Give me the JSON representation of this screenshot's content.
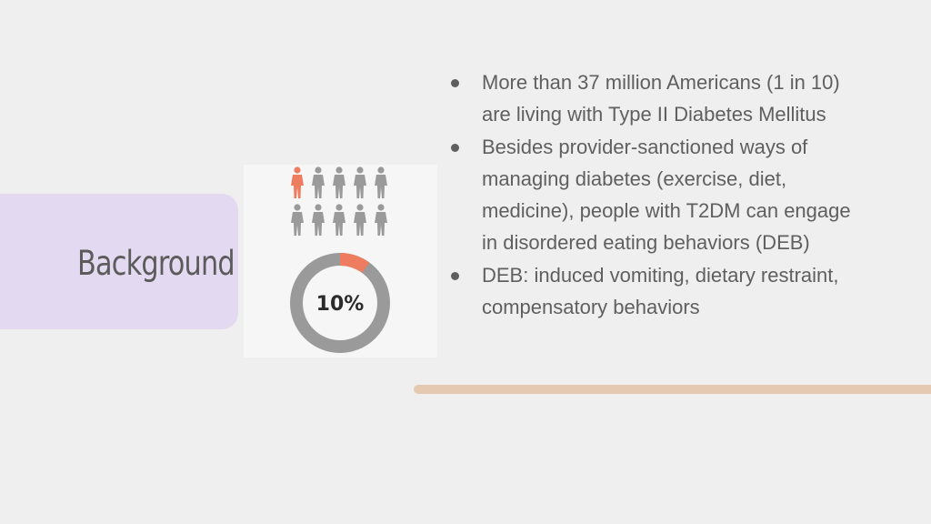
{
  "slide": {
    "title": "Background",
    "bullets": [
      "More than 37 million Americans (1 in 10) are living with Type II Diabetes Mellitus",
      "Besides provider-sanctioned ways of managing diabetes (exercise, diet, medicine), people with T2DM can engage in disordered eating behaviors (DEB)",
      "DEB: induced vomiting, dietary restraint, compensatory behaviors"
    ]
  },
  "infographic": {
    "percent_label": "10%",
    "highlighted_people": 1,
    "total_people": 10,
    "fraction": 0.1,
    "colors": {
      "highlight": "#ee7d5f",
      "base": "#9a9a9a"
    }
  },
  "colors": {
    "background": "#efefef",
    "title_panel": "#e3d9f0",
    "accent_bar": "#e6c9b1",
    "text": "#5f5f5f"
  }
}
